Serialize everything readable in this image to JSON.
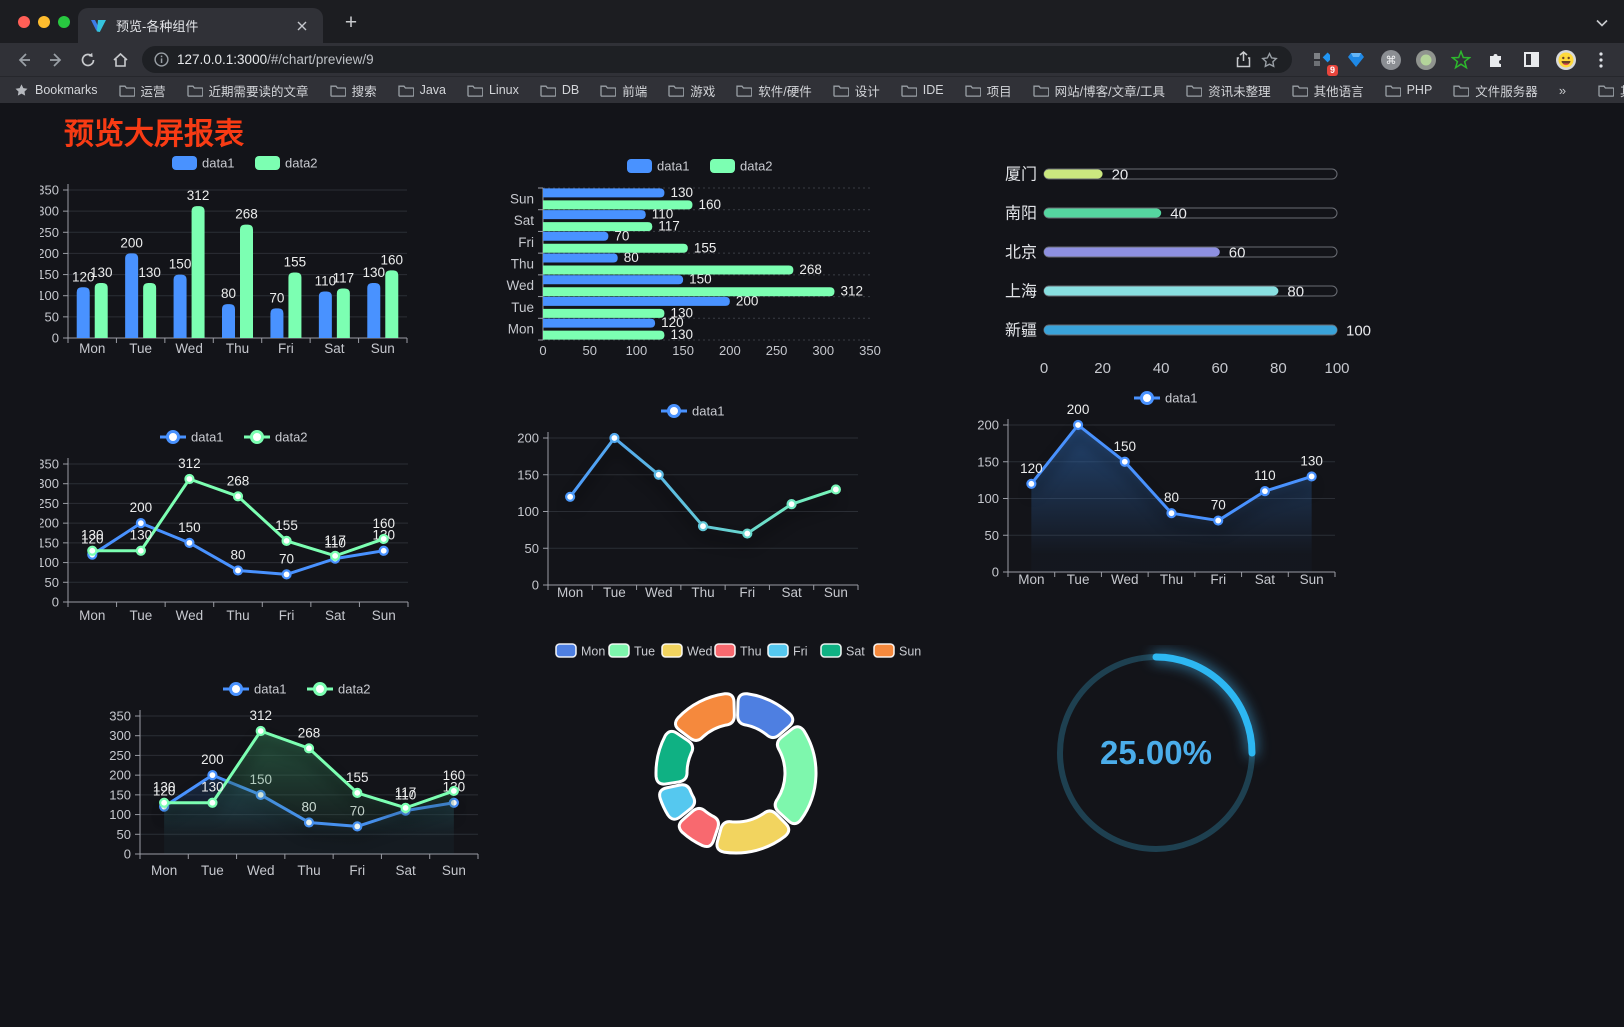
{
  "browser": {
    "tab_title": "预览-各种组件",
    "url_host": "127.0.0.1:3000",
    "url_path": "/#/chart/preview/9",
    "extension_badge": "9",
    "bookmarks": [
      {
        "label": "Bookmarks",
        "icon": "star"
      },
      {
        "label": "运营",
        "icon": "folder"
      },
      {
        "label": "近期需要读的文章",
        "icon": "folder"
      },
      {
        "label": "搜索",
        "icon": "folder"
      },
      {
        "label": "Java",
        "icon": "folder"
      },
      {
        "label": "Linux",
        "icon": "folder"
      },
      {
        "label": "DB",
        "icon": "folder"
      },
      {
        "label": "前端",
        "icon": "folder"
      },
      {
        "label": "游戏",
        "icon": "folder"
      },
      {
        "label": "软件/硬件",
        "icon": "folder"
      },
      {
        "label": "设计",
        "icon": "folder"
      },
      {
        "label": "IDE",
        "icon": "folder"
      },
      {
        "label": "项目",
        "icon": "folder"
      },
      {
        "label": "网站/博客/文章/工具",
        "icon": "folder"
      },
      {
        "label": "资讯未整理",
        "icon": "folder"
      },
      {
        "label": "其他语言",
        "icon": "folder"
      },
      {
        "label": "PHP",
        "icon": "folder"
      },
      {
        "label": "文件服务器",
        "icon": "folder"
      },
      {
        "label": "»",
        "icon": "chevron"
      },
      {
        "label": "其他书签",
        "icon": "folder",
        "divider_before": true
      }
    ]
  },
  "page": {
    "title": "预览大屏报表",
    "title_color": "#f83b14",
    "background": "#131419"
  },
  "chart_data": [
    {
      "type": "bar",
      "categories": [
        "Mon",
        "Tue",
        "Wed",
        "Thu",
        "Fri",
        "Sat",
        "Sun"
      ],
      "series": [
        {
          "name": "data1",
          "color": "#4992ff",
          "values": [
            120,
            200,
            150,
            80,
            70,
            110,
            130
          ]
        },
        {
          "name": "data2",
          "color": "#7cffb2",
          "values": [
            130,
            130,
            312,
            268,
            155,
            117,
            160
          ]
        }
      ],
      "ylim": [
        0,
        350
      ],
      "yticks": [
        0,
        50,
        100,
        150,
        200,
        250,
        300,
        350
      ],
      "value_labels": true,
      "legend_position": "top",
      "grid": true
    },
    {
      "type": "bar-horizontal",
      "categories": [
        "Mon",
        "Tue",
        "Wed",
        "Thu",
        "Fri",
        "Sat",
        "Sun"
      ],
      "category_order": "Mon at bottom, Sun at top",
      "series": [
        {
          "name": "data1",
          "color": "#4992ff",
          "values": [
            120,
            200,
            150,
            80,
            70,
            110,
            130
          ]
        },
        {
          "name": "data2",
          "color": "#7cffb2",
          "values": [
            130,
            130,
            312,
            268,
            155,
            117,
            160
          ]
        }
      ],
      "xlim": [
        0,
        350
      ],
      "xticks": [
        0,
        50,
        100,
        150,
        200,
        250,
        300,
        350
      ],
      "value_labels": true,
      "legend_position": "top",
      "grid": "dotted"
    },
    {
      "type": "progress-bars",
      "items": [
        {
          "label": "厦门",
          "value": 20,
          "color": "#cbe87f"
        },
        {
          "label": "南阳",
          "value": 40,
          "color": "#55d6a0"
        },
        {
          "label": "北京",
          "value": 60,
          "color": "#8e90e0"
        },
        {
          "label": "上海",
          "value": 80,
          "color": "#88dfe0"
        },
        {
          "label": "新疆",
          "value": 100,
          "color": "#3aa3d9"
        }
      ],
      "xlim": [
        0,
        100
      ],
      "xticks": [
        0,
        20,
        40,
        60,
        80,
        100
      ]
    },
    {
      "type": "line",
      "categories": [
        "Mon",
        "Tue",
        "Wed",
        "Thu",
        "Fri",
        "Sat",
        "Sun"
      ],
      "series": [
        {
          "name": "data1",
          "color": "#4992ff",
          "values": [
            120,
            200,
            150,
            80,
            70,
            110,
            130
          ]
        },
        {
          "name": "data2",
          "color": "#7cffb2",
          "values": [
            130,
            130,
            312,
            268,
            155,
            117,
            160
          ]
        }
      ],
      "ylim": [
        0,
        350
      ],
      "yticks": [
        0,
        50,
        100,
        150,
        200,
        250,
        300,
        350
      ],
      "value_labels": true,
      "legend_position": "top"
    },
    {
      "type": "line",
      "categories": [
        "Mon",
        "Tue",
        "Wed",
        "Thu",
        "Fri",
        "Sat",
        "Sun"
      ],
      "series": [
        {
          "name": "data1",
          "gradient": [
            "#4992ff",
            "#7cffb2"
          ],
          "color": "#4992ff",
          "values": [
            120,
            200,
            150,
            80,
            70,
            110,
            130
          ]
        }
      ],
      "ylim": [
        0,
        200
      ],
      "yticks": [
        0,
        50,
        100,
        150,
        200
      ],
      "value_labels": false,
      "line_shadow": true,
      "legend_position": "top"
    },
    {
      "type": "line",
      "categories": [
        "Mon",
        "Tue",
        "Wed",
        "Thu",
        "Fri",
        "Sat",
        "Sun"
      ],
      "series": [
        {
          "name": "data1",
          "color": "#4992ff",
          "values": [
            120,
            200,
            150,
            80,
            70,
            110,
            130
          ],
          "area": true,
          "area_color": "45,100,170"
        }
      ],
      "ylim": [
        0,
        200
      ],
      "yticks": [
        0,
        50,
        100,
        150,
        200
      ],
      "value_labels": true,
      "line_shadow": true,
      "legend_position": "top"
    },
    {
      "type": "line",
      "categories": [
        "Mon",
        "Tue",
        "Wed",
        "Thu",
        "Fri",
        "Sat",
        "Sun"
      ],
      "series": [
        {
          "name": "data1",
          "color": "#4992ff",
          "values": [
            120,
            200,
            150,
            80,
            70,
            110,
            130
          ],
          "area": true,
          "area_color": "44,96,168"
        },
        {
          "name": "data2",
          "color": "#7cffb2",
          "values": [
            130,
            130,
            312,
            268,
            155,
            117,
            160
          ],
          "area": true,
          "area_color": "52,130,90"
        }
      ],
      "ylim": [
        0,
        350
      ],
      "yticks": [
        0,
        50,
        100,
        150,
        200,
        250,
        300,
        350
      ],
      "value_labels": true,
      "line_shadow": true,
      "legend_position": "top"
    },
    {
      "type": "pie",
      "shape": "donut, rounded segments, white borders",
      "items": [
        {
          "label": "Mon",
          "value": 120,
          "color": "#4e7fe1"
        },
        {
          "label": "Tue",
          "value": 200,
          "color": "#7ef7ad"
        },
        {
          "label": "Wed",
          "value": 150,
          "color": "#f2d45f"
        },
        {
          "label": "Thu",
          "value": 80,
          "color": "#f8696f"
        },
        {
          "label": "Fri",
          "value": 70,
          "color": "#55c8ef"
        },
        {
          "label": "Sat",
          "value": 110,
          "color": "#0fb183"
        },
        {
          "label": "Sun",
          "value": 130,
          "color": "#f5893d"
        }
      ],
      "legend_position": "top"
    },
    {
      "type": "gauge",
      "value_percent": 25,
      "label": "25.00%",
      "arc_color": "#2db7f2",
      "track_color": "#1e4050",
      "text_color": "#4badea"
    }
  ]
}
